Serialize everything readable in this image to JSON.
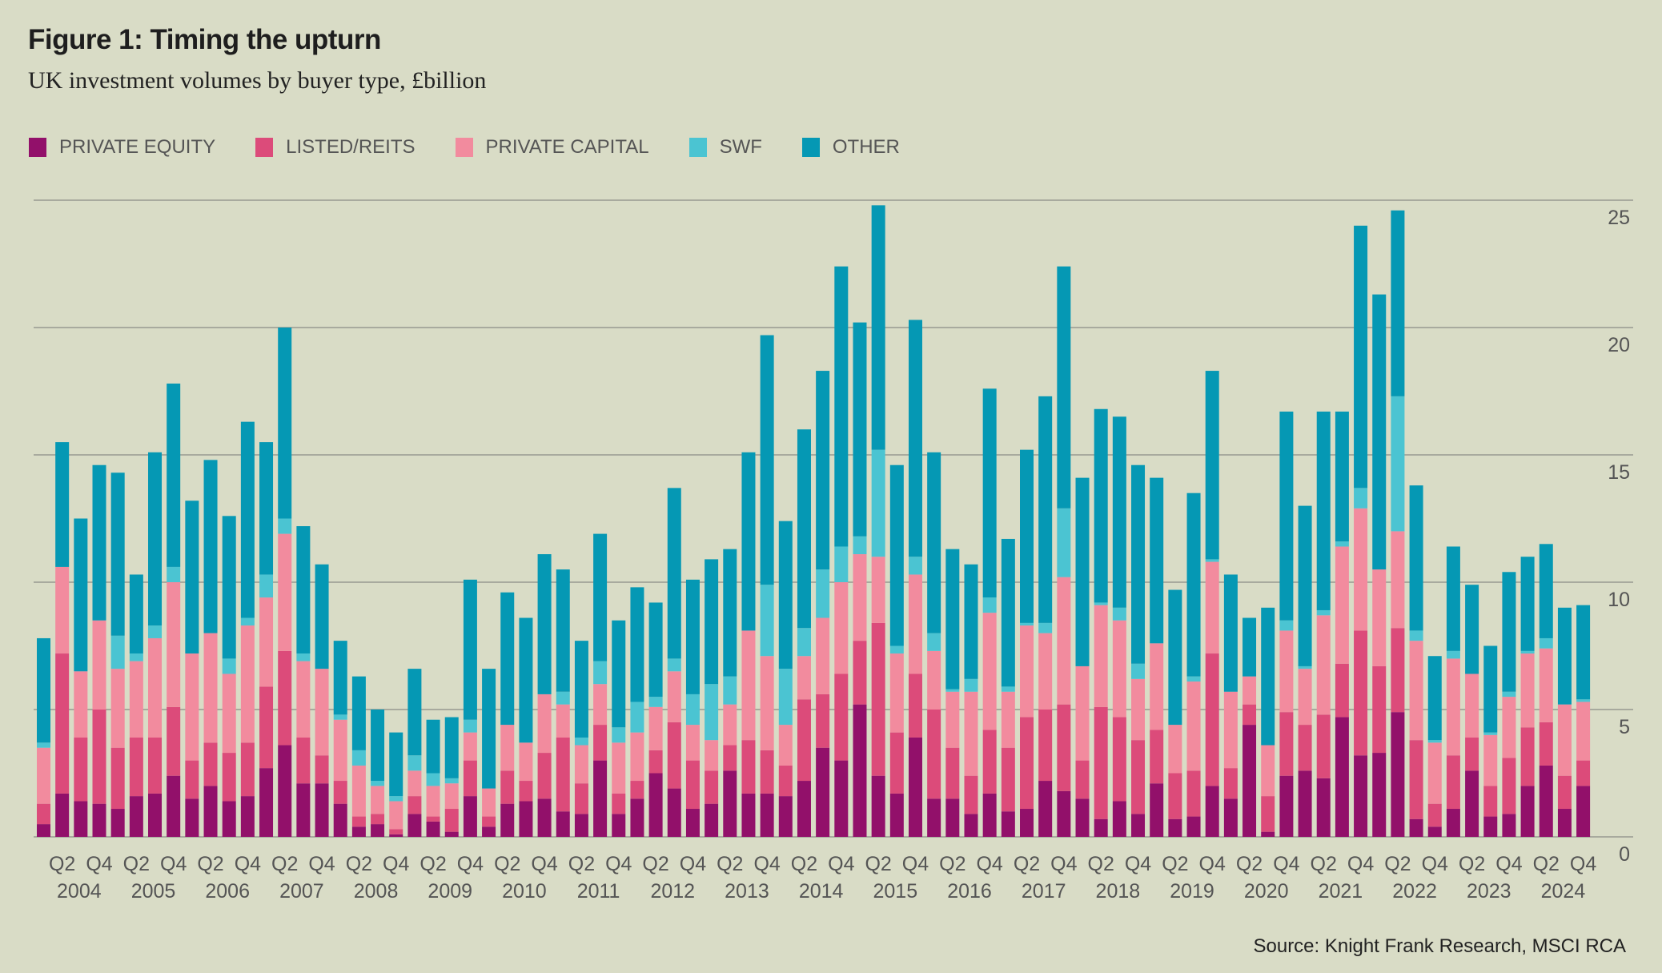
{
  "header": {
    "title": "Figure 1: Timing the upturn",
    "subtitle": "UK investment volumes by buyer type, £billion"
  },
  "source": "Source: Knight Frank Research, MSCI RCA",
  "chart_data": {
    "type": "bar",
    "stacked": true,
    "title": "Figure 1: Timing the upturn",
    "subtitle": "UK investment volumes by buyer type, £billion",
    "xlabel": "",
    "ylabel": "£billion",
    "ylim": [
      0,
      25
    ],
    "yticks": [
      0,
      5,
      10,
      15,
      20,
      25
    ],
    "y_axis_position": "right",
    "grid": true,
    "legend_position": "top-left",
    "x_tick_labels": [
      "Q2",
      "Q4"
    ],
    "years": [
      "2004",
      "2005",
      "2006",
      "2007",
      "2008",
      "2009",
      "2010",
      "2011",
      "2012",
      "2013",
      "2014",
      "2015",
      "2016",
      "2017",
      "2018",
      "2019",
      "2020",
      "2021",
      "2022",
      "2023",
      "2024"
    ],
    "categories": [
      "2004 Q1",
      "2004 Q2",
      "2004 Q3",
      "2004 Q4",
      "2005 Q1",
      "2005 Q2",
      "2005 Q3",
      "2005 Q4",
      "2006 Q1",
      "2006 Q2",
      "2006 Q3",
      "2006 Q4",
      "2007 Q1",
      "2007 Q2",
      "2007 Q3",
      "2007 Q4",
      "2008 Q1",
      "2008 Q2",
      "2008 Q3",
      "2008 Q4",
      "2009 Q1",
      "2009 Q2",
      "2009 Q3",
      "2009 Q4",
      "2010 Q1",
      "2010 Q2",
      "2010 Q3",
      "2010 Q4",
      "2011 Q1",
      "2011 Q2",
      "2011 Q3",
      "2011 Q4",
      "2012 Q1",
      "2012 Q2",
      "2012 Q3",
      "2012 Q4",
      "2013 Q1",
      "2013 Q2",
      "2013 Q3",
      "2013 Q4",
      "2014 Q1",
      "2014 Q2",
      "2014 Q3",
      "2014 Q4",
      "2015 Q1",
      "2015 Q2",
      "2015 Q3",
      "2015 Q4",
      "2016 Q1",
      "2016 Q2",
      "2016 Q3",
      "2016 Q4",
      "2017 Q1",
      "2017 Q2",
      "2017 Q3",
      "2017 Q4",
      "2018 Q1",
      "2018 Q2",
      "2018 Q3",
      "2018 Q4",
      "2019 Q1",
      "2019 Q2",
      "2019 Q3",
      "2019 Q4",
      "2020 Q1",
      "2020 Q2",
      "2020 Q3",
      "2020 Q4",
      "2021 Q1",
      "2021 Q2",
      "2021 Q3",
      "2021 Q4",
      "2022 Q1",
      "2022 Q2",
      "2022 Q3",
      "2022 Q4",
      "2023 Q1",
      "2023 Q2",
      "2023 Q3",
      "2023 Q4",
      "2024 Q1",
      "2024 Q2",
      "2024 Q3",
      "2024 Q4"
    ],
    "series": [
      {
        "name": "PRIVATE EQUITY",
        "color": "#92106a",
        "values": [
          0.5,
          1.7,
          1.4,
          1.3,
          1.1,
          1.6,
          1.7,
          2.4,
          1.5,
          2.0,
          1.4,
          1.6,
          2.7,
          3.6,
          2.1,
          2.1,
          1.3,
          0.4,
          0.5,
          0.1,
          0.9,
          0.6,
          0.2,
          1.6,
          0.4,
          1.3,
          1.4,
          1.5,
          1.0,
          0.9,
          3.0,
          0.9,
          1.5,
          2.5,
          1.9,
          1.1,
          1.3,
          2.6,
          1.7,
          1.7,
          1.6,
          2.2,
          3.5,
          3.0,
          5.2,
          2.4,
          1.7,
          3.9,
          1.5,
          1.5,
          0.9,
          1.7,
          1.0,
          1.1,
          2.2,
          1.8,
          1.5,
          0.7,
          1.4,
          0.9,
          2.1,
          0.7,
          0.8,
          2.0,
          1.5,
          4.4,
          0.2,
          2.4,
          2.6,
          2.3,
          4.7,
          3.2,
          3.3,
          4.9,
          0.7,
          0.4,
          1.1,
          2.6,
          0.8,
          0.9,
          2.0,
          2.8,
          1.1,
          2.0
        ]
      },
      {
        "name": "LISTED/REITS",
        "color": "#dc4b7a",
        "values": [
          0.8,
          5.5,
          2.5,
          3.7,
          2.4,
          2.3,
          2.2,
          2.7,
          1.5,
          1.7,
          1.9,
          2.1,
          3.2,
          3.7,
          1.8,
          1.1,
          0.9,
          0.4,
          0.4,
          0.2,
          0.7,
          0.2,
          0.9,
          1.4,
          0.4,
          1.3,
          0.8,
          1.8,
          2.9,
          1.2,
          1.4,
          0.8,
          0.7,
          0.9,
          2.6,
          1.9,
          1.3,
          1.0,
          2.1,
          1.7,
          1.2,
          3.2,
          2.1,
          3.4,
          2.5,
          6.0,
          2.4,
          2.5,
          3.5,
          2.0,
          1.5,
          2.5,
          2.5,
          3.6,
          2.8,
          3.4,
          1.5,
          4.4,
          3.3,
          2.9,
          2.1,
          1.8,
          1.8,
          5.2,
          1.2,
          0.8,
          1.4,
          2.5,
          1.8,
          2.5,
          2.1,
          4.9,
          3.4,
          3.3,
          3.1,
          0.9,
          2.1,
          1.3,
          1.2,
          2.2,
          2.3,
          1.7,
          1.3,
          1.0
        ]
      },
      {
        "name": "PRIVATE CAPITAL",
        "color": "#f28b9e",
        "values": [
          2.2,
          3.4,
          2.6,
          3.5,
          3.1,
          3.0,
          3.9,
          4.9,
          4.2,
          4.3,
          3.1,
          4.6,
          3.5,
          4.6,
          3.0,
          3.4,
          2.4,
          2.0,
          1.1,
          1.1,
          1.0,
          1.2,
          1.0,
          1.1,
          1.1,
          1.8,
          1.5,
          2.3,
          1.3,
          1.5,
          1.6,
          2.0,
          1.9,
          1.7,
          2.0,
          1.4,
          1.2,
          1.6,
          4.3,
          3.7,
          1.6,
          1.7,
          3.0,
          3.6,
          3.4,
          2.6,
          3.1,
          3.9,
          2.3,
          2.2,
          3.3,
          4.6,
          2.2,
          3.6,
          3.0,
          5.0,
          3.7,
          4.0,
          3.8,
          2.4,
          3.4,
          1.9,
          3.5,
          3.6,
          3.0,
          1.1,
          2.0,
          3.2,
          2.2,
          3.9,
          4.6,
          4.8,
          3.8,
          3.8,
          3.9,
          2.4,
          3.8,
          2.5,
          2.0,
          2.4,
          2.9,
          2.9,
          2.8,
          2.3
        ]
      },
      {
        "name": "SWF",
        "color": "#4bc4d2",
        "values": [
          0.2,
          0.0,
          0.0,
          0.0,
          1.3,
          0.3,
          0.5,
          0.6,
          0.0,
          0.0,
          0.6,
          0.3,
          0.9,
          0.6,
          0.3,
          0.0,
          0.2,
          0.6,
          0.2,
          0.2,
          0.6,
          0.5,
          0.2,
          0.5,
          0.0,
          0.0,
          0.0,
          0.0,
          0.5,
          0.3,
          0.9,
          0.6,
          1.2,
          0.4,
          0.5,
          1.2,
          2.2,
          1.1,
          0.0,
          2.8,
          2.2,
          1.1,
          1.9,
          1.4,
          0.7,
          4.2,
          0.3,
          0.7,
          0.7,
          0.1,
          0.5,
          0.6,
          0.2,
          0.1,
          0.4,
          2.7,
          0.0,
          0.1,
          0.5,
          0.6,
          0.0,
          0.0,
          0.2,
          0.1,
          0.0,
          0.0,
          0.0,
          0.4,
          0.1,
          0.2,
          0.2,
          0.8,
          0.0,
          5.3,
          0.4,
          0.1,
          0.3,
          0.0,
          0.1,
          0.2,
          0.1,
          0.4,
          0.0,
          0.1
        ]
      },
      {
        "name": "OTHER",
        "color": "#0598b4",
        "values": [
          4.1,
          4.9,
          6.0,
          6.1,
          6.4,
          3.1,
          6.8,
          7.2,
          6.0,
          6.8,
          5.6,
          7.7,
          5.2,
          7.5,
          5.0,
          4.1,
          2.9,
          2.9,
          2.8,
          2.5,
          3.4,
          2.1,
          2.4,
          5.5,
          4.7,
          5.2,
          4.9,
          5.5,
          4.8,
          3.8,
          5.0,
          4.2,
          4.5,
          3.7,
          6.7,
          4.5,
          4.9,
          5.0,
          7.0,
          9.8,
          5.8,
          7.8,
          7.8,
          11.0,
          8.4,
          9.6,
          7.1,
          9.3,
          7.1,
          5.5,
          4.5,
          8.2,
          5.8,
          6.8,
          8.9,
          9.5,
          7.4,
          7.6,
          7.5,
          7.8,
          6.5,
          5.3,
          7.2,
          7.4,
          4.6,
          2.3,
          5.4,
          8.2,
          6.3,
          7.8,
          5.1,
          10.3,
          10.8,
          7.3,
          5.7,
          3.3,
          4.1,
          3.5,
          3.4,
          4.7,
          3.7,
          3.7,
          3.8,
          3.7
        ]
      }
    ]
  }
}
